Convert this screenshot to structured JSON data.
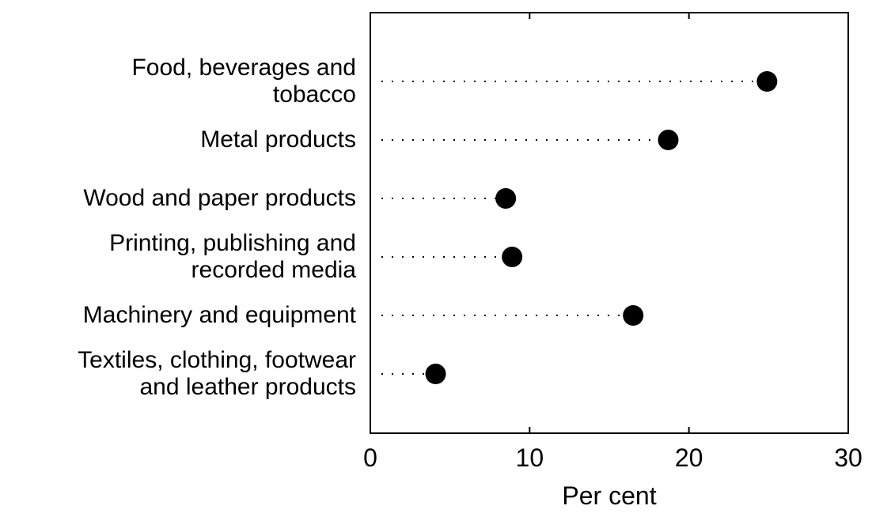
{
  "chart_data": {
    "type": "dot",
    "categories": [
      "Food, beverages and\ntobacco",
      "Metal products",
      "Wood and paper products",
      "Printing, publishing and\nrecorded media",
      "Machinery and equipment",
      "Textiles, clothing, footwear\nand leather products"
    ],
    "values": [
      24.9,
      18.7,
      8.5,
      8.9,
      16.5,
      4.1
    ],
    "color": "#000000",
    "xlim": [
      0,
      30
    ],
    "xticks": [
      0,
      10,
      20,
      30
    ],
    "xlabel": "Per cent"
  }
}
